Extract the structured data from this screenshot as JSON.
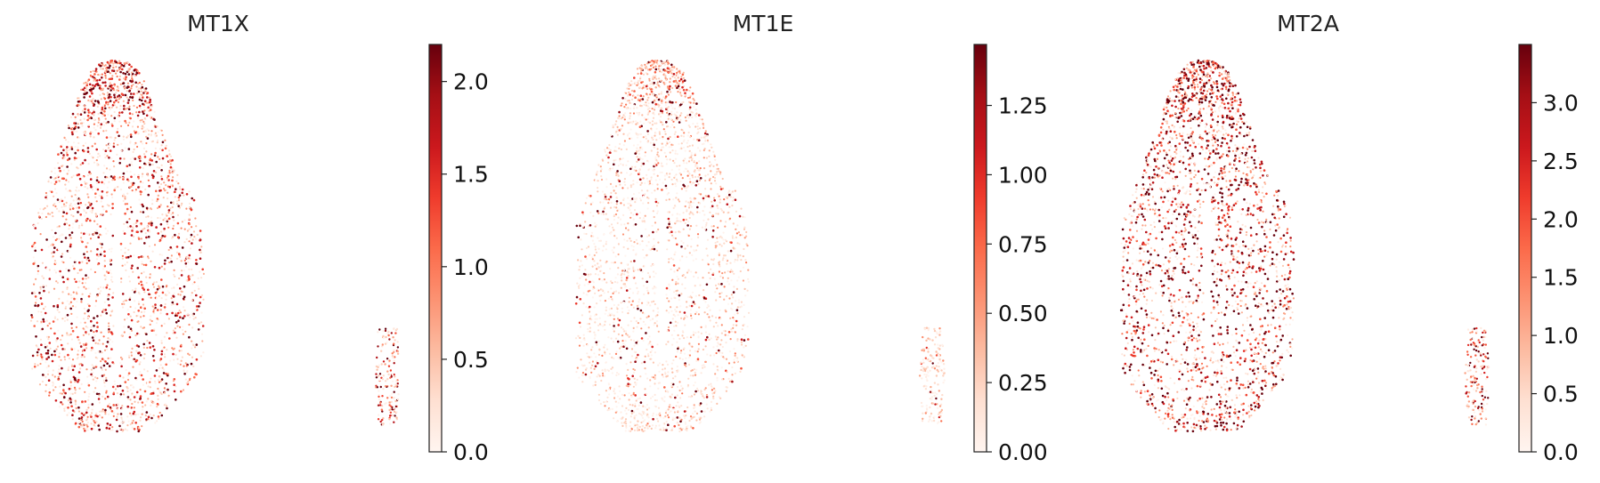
{
  "chart_data": [
    {
      "type": "scatter",
      "title": "MT1X",
      "colormap": "Reds",
      "colorbar": {
        "min": 0.0,
        "max": 2.2,
        "ticks": [
          0.0,
          0.5,
          1.0,
          1.5,
          2.0
        ],
        "tick_labels": [
          "0.0",
          "0.5",
          "1.0",
          "1.5",
          "2.0"
        ]
      },
      "axes_visible": false,
      "grid": false,
      "intensity": 0.45
    },
    {
      "type": "scatter",
      "title": "MT1E",
      "colormap": "Reds",
      "colorbar": {
        "min": 0.0,
        "max": 1.47,
        "ticks": [
          0.0,
          0.25,
          0.5,
          0.75,
          1.0,
          1.25
        ],
        "tick_labels": [
          "0.00",
          "0.25",
          "0.50",
          "0.75",
          "1.00",
          "1.25"
        ]
      },
      "axes_visible": false,
      "grid": false,
      "intensity": 0.22
    },
    {
      "type": "scatter",
      "title": "MT2A",
      "colormap": "Reds",
      "colorbar": {
        "min": 0.0,
        "max": 3.5,
        "ticks": [
          0.0,
          0.5,
          1.0,
          1.5,
          2.0,
          2.5,
          3.0
        ],
        "tick_labels": [
          "0.0",
          "0.5",
          "1.0",
          "1.5",
          "2.0",
          "2.5",
          "3.0"
        ]
      },
      "axes_visible": false,
      "grid": false,
      "intensity": 0.6
    }
  ]
}
